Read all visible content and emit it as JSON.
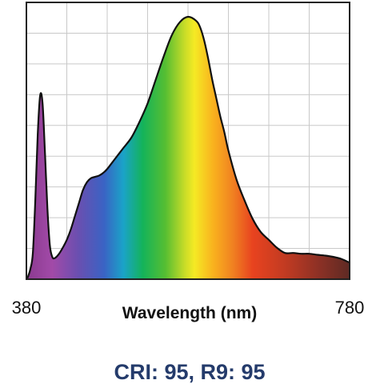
{
  "chart_data": {
    "type": "area",
    "xlabel": "Wavelength (nm)",
    "x_tick_labels": [
      "380",
      "780"
    ],
    "xlim": [
      380,
      780
    ],
    "ylim": [
      0,
      1
    ],
    "grid": true,
    "series": [
      {
        "x": [
          380,
          382,
          385,
          388,
          391,
          394,
          397,
          400,
          403,
          406,
          409,
          412,
          415,
          420,
          425,
          430,
          435,
          440,
          445,
          450,
          455,
          460,
          465,
          470,
          475,
          480,
          490,
          500,
          510,
          520,
          530,
          540,
          550,
          560,
          570,
          580,
          590,
          595,
          600,
          605,
          610,
          615,
          620,
          625,
          630,
          640,
          650,
          660,
          670,
          680,
          690,
          700,
          710,
          720,
          730,
          740,
          750,
          760,
          770,
          780
        ],
        "y": [
          0.0,
          0.01,
          0.04,
          0.1,
          0.3,
          0.55,
          0.7,
          0.67,
          0.48,
          0.27,
          0.13,
          0.085,
          0.08,
          0.095,
          0.12,
          0.15,
          0.19,
          0.24,
          0.29,
          0.34,
          0.37,
          0.385,
          0.39,
          0.395,
          0.405,
          0.42,
          0.46,
          0.5,
          0.54,
          0.6,
          0.67,
          0.76,
          0.85,
          0.93,
          0.98,
          1.0,
          0.985,
          0.96,
          0.91,
          0.84,
          0.76,
          0.69,
          0.62,
          0.56,
          0.49,
          0.38,
          0.3,
          0.23,
          0.18,
          0.15,
          0.12,
          0.1,
          0.1,
          0.097,
          0.097,
          0.093,
          0.09,
          0.085,
          0.077,
          0.063
        ]
      }
    ]
  },
  "footer": {
    "text": "CRI: 95, R9: 95",
    "color": "#243b6b"
  }
}
